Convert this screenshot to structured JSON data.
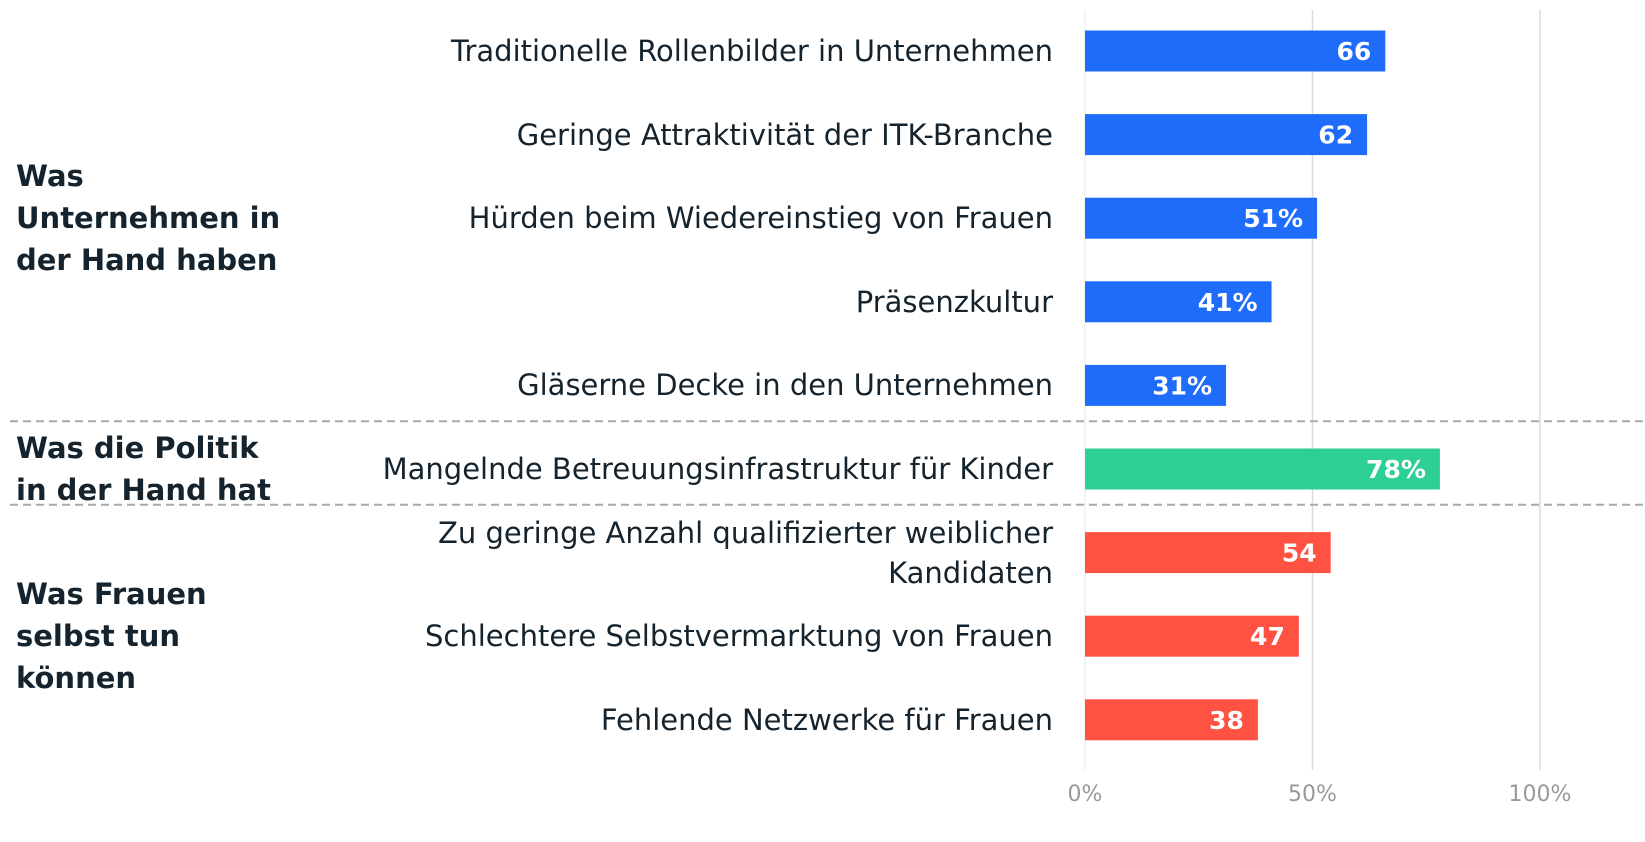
{
  "chart_data": {
    "type": "bar",
    "orientation": "horizontal",
    "categories": [
      "Traditionelle Rollenbilder in Unternehmen",
      "Geringe Attraktivität der ITK-Branche",
      "Hürden beim Wiedereinstieg von Frauen",
      "Präsenzkultur",
      "Gläserne Decke in den Unternehmen",
      "Mangelnde Betreuungsinfrastruktur für Kinder",
      "Zu geringe Anzahl qualifizierter weiblicher Kandidaten",
      "Schlechtere Selbstvermarktung von Frauen",
      "Fehlende Netzwerke für Frauen"
    ],
    "values": [
      66,
      62,
      51,
      41,
      31,
      78,
      54,
      47,
      38
    ],
    "value_labels": [
      "66",
      "62",
      "51%",
      "41%",
      "31%",
      "78%",
      "54",
      "47",
      "38"
    ],
    "groups": [
      {
        "name": "Was Unternehmen in der Hand haben",
        "count": 5,
        "color": "#1f6bfa"
      },
      {
        "name": "Was die Politik in der Hand hat",
        "count": 1,
        "color": "#2ecf95"
      },
      {
        "name": "Was Frauen selbst tun können",
        "count": 3,
        "color": "#ff5243"
      }
    ],
    "xlim": [
      0,
      100
    ],
    "xticks": [
      {
        "value": 0,
        "label": "0%"
      },
      {
        "value": 50,
        "label": "50%"
      },
      {
        "value": 100,
        "label": "100%"
      }
    ],
    "grid": true
  }
}
